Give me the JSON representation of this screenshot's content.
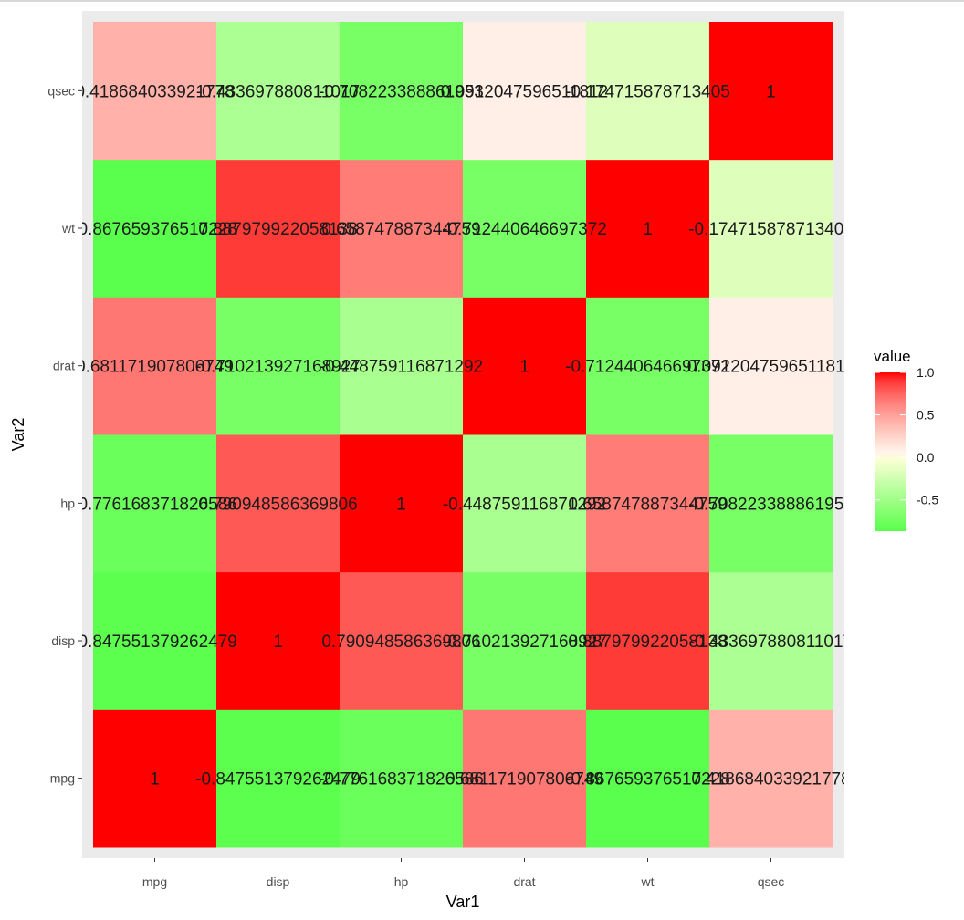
{
  "chart_data": {
    "type": "heatmap",
    "xlabel": "Var1",
    "ylabel": "Var2",
    "x_categories": [
      "mpg",
      "disp",
      "hp",
      "drat",
      "wt",
      "qsec"
    ],
    "y_categories": [
      "mpg",
      "disp",
      "hp",
      "drat",
      "wt",
      "qsec"
    ],
    "values": [
      [
        1,
        -0.847551379262479,
        -0.776168371826586,
        0.681171907806749,
        -0.867659376517228,
        0.418684033921778
      ],
      [
        -0.847551379262479,
        1,
        0.790948586369806,
        -0.710213927168927,
        0.887979922058138,
        -0.433697880811017
      ],
      [
        -0.776168371826586,
        0.790948586369806,
        1,
        -0.448759116871292,
        0.658747887344759,
        -0.708223388861953
      ],
      [
        0.681171907806749,
        -0.710213927168927,
        -0.448759116871292,
        1,
        -0.712440646697372,
        0.0912047596511812
      ],
      [
        -0.867659376517228,
        0.887979922058138,
        0.658747887344759,
        -0.712440646697372,
        1,
        -0.174715878713405
      ],
      [
        0.418684033921778,
        -0.433697880811017,
        -0.708223388861953,
        0.0912047596511812,
        -0.174715878713405,
        1
      ]
    ],
    "legend": {
      "title": "value",
      "ticks": [
        "1.0",
        "0.5",
        "0.0",
        "-0.5"
      ],
      "tick_values": [
        1.0,
        0.5,
        0.0,
        -0.5
      ],
      "range": [
        -0.867659376517228,
        1
      ],
      "placement": "right"
    },
    "colors": {
      "low": "#00ff00",
      "mid": "#ffffff",
      "high": "#ff0000",
      "panel": "#ebebeb"
    },
    "grid": false
  }
}
